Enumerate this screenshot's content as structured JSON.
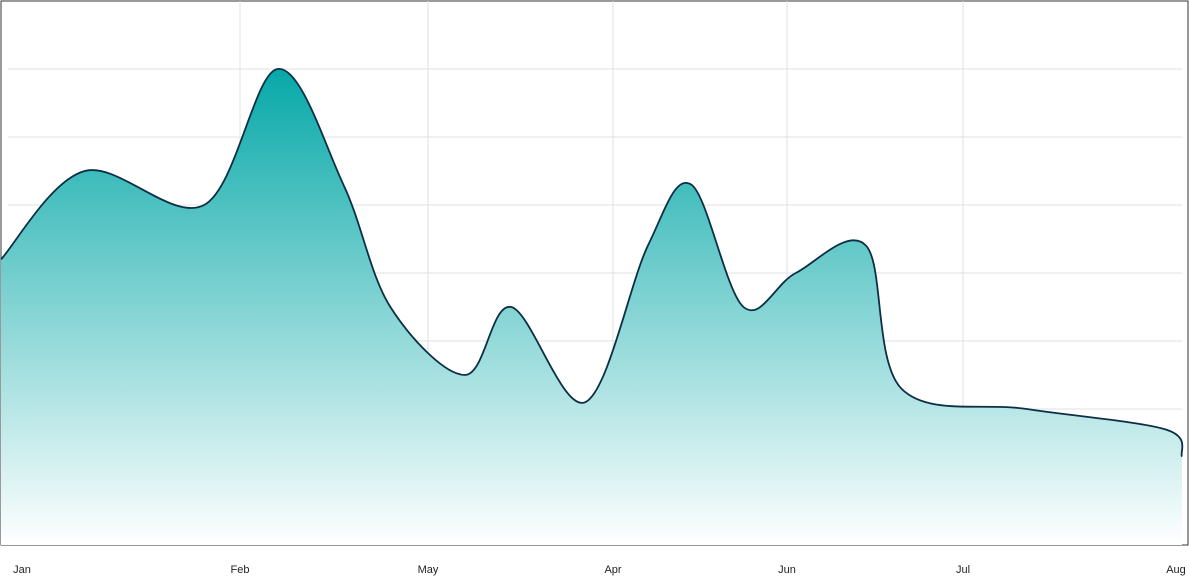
{
  "chart_data": {
    "type": "area",
    "title": "",
    "xlabel": "",
    "ylabel": "",
    "grid": true,
    "legend": "none",
    "curve": "smooth",
    "x_ticks": [
      "Jan",
      "Feb",
      "May",
      "Apr",
      "Jun",
      "Jul",
      "Aug"
    ],
    "ylim": [
      0,
      8
    ],
    "y_gridlines": [
      1,
      2,
      3,
      4,
      5,
      6,
      7
    ],
    "series": [
      {
        "x": [
          0.0,
          0.35,
          0.85,
          1.2,
          1.55,
          1.8,
          2.2,
          2.45,
          2.85,
          3.2,
          3.45,
          3.75,
          4.05,
          4.45,
          4.65,
          5.3,
          5.95,
          6.3
        ],
        "y": [
          4.2,
          5.5,
          5.0,
          7.0,
          5.3,
          3.5,
          2.5,
          3.5,
          2.1,
          4.4,
          5.3,
          3.5,
          4.0,
          4.4,
          2.3,
          2.0,
          1.7,
          1.3
        ]
      }
    ],
    "colors": {
      "line": "#0b2f45",
      "fill_top": "#07a8a8",
      "fill_bottom": "#ffffff",
      "grid": "#e0e0e0",
      "frame": "#333333"
    }
  }
}
